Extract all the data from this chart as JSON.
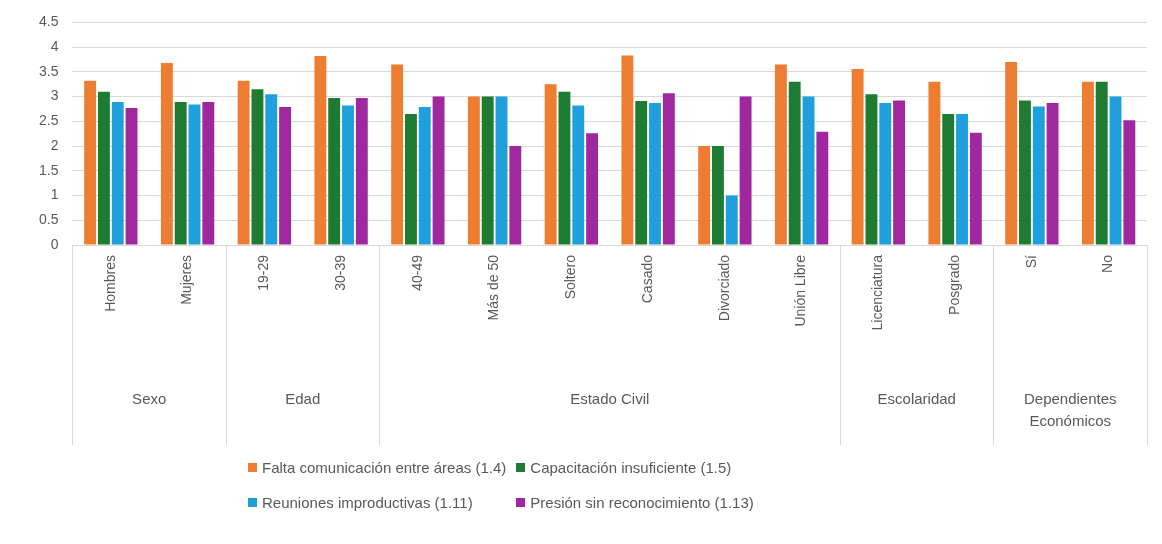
{
  "chart_data": {
    "type": "bar",
    "categories": [
      "Hombres",
      "Mujeres",
      "19-29",
      "30-39",
      "40-49",
      "Más de 50",
      "Soltero",
      "Casado",
      "Divorciado",
      "Unión Libre",
      "Licenciatura",
      "Posgrado",
      "Sí",
      "No"
    ],
    "series": [
      {
        "name": "Falta comunicación entre áreas (1.4)",
        "color": "#ed7d31",
        "values": [
          3.32,
          3.68,
          3.32,
          3.82,
          3.65,
          3,
          3.25,
          3.83,
          2,
          3.65,
          3.56,
          3.3,
          3.7,
          3.3
        ]
      },
      {
        "name": "Capacitación insuficiente (1.5)",
        "color": "#1e7b32",
        "values": [
          3.1,
          2.89,
          3.15,
          2.97,
          2.65,
          3,
          3.1,
          2.91,
          2,
          3.3,
          3.05,
          2.65,
          2.92,
          3.3
        ]
      },
      {
        "name": "Reuniones improductivas (1.11)",
        "color": "#1fa0dc",
        "values": [
          2.89,
          2.84,
          3.05,
          2.82,
          2.79,
          3,
          2.82,
          2.87,
          1,
          3,
          2.87,
          2.65,
          2.8,
          3
        ]
      },
      {
        "name": "Presión sin reconocimiento (1.13)",
        "color": "#a0289f",
        "values": [
          2.77,
          2.89,
          2.79,
          2.97,
          3,
          2,
          2.26,
          3.07,
          3,
          2.29,
          2.92,
          2.27,
          2.87,
          2.52
        ]
      }
    ],
    "ylim": [
      0,
      4.5
    ],
    "yticks": [
      0,
      0.5,
      1,
      1.5,
      2,
      2.5,
      3,
      3.5,
      4,
      4.5
    ],
    "grid": "y",
    "legend": "bottom",
    "annotations": [
      "Sexo",
      "Edad",
      "Estado Civil",
      "Escolaridad",
      "Dependientes Económicos"
    ]
  }
}
